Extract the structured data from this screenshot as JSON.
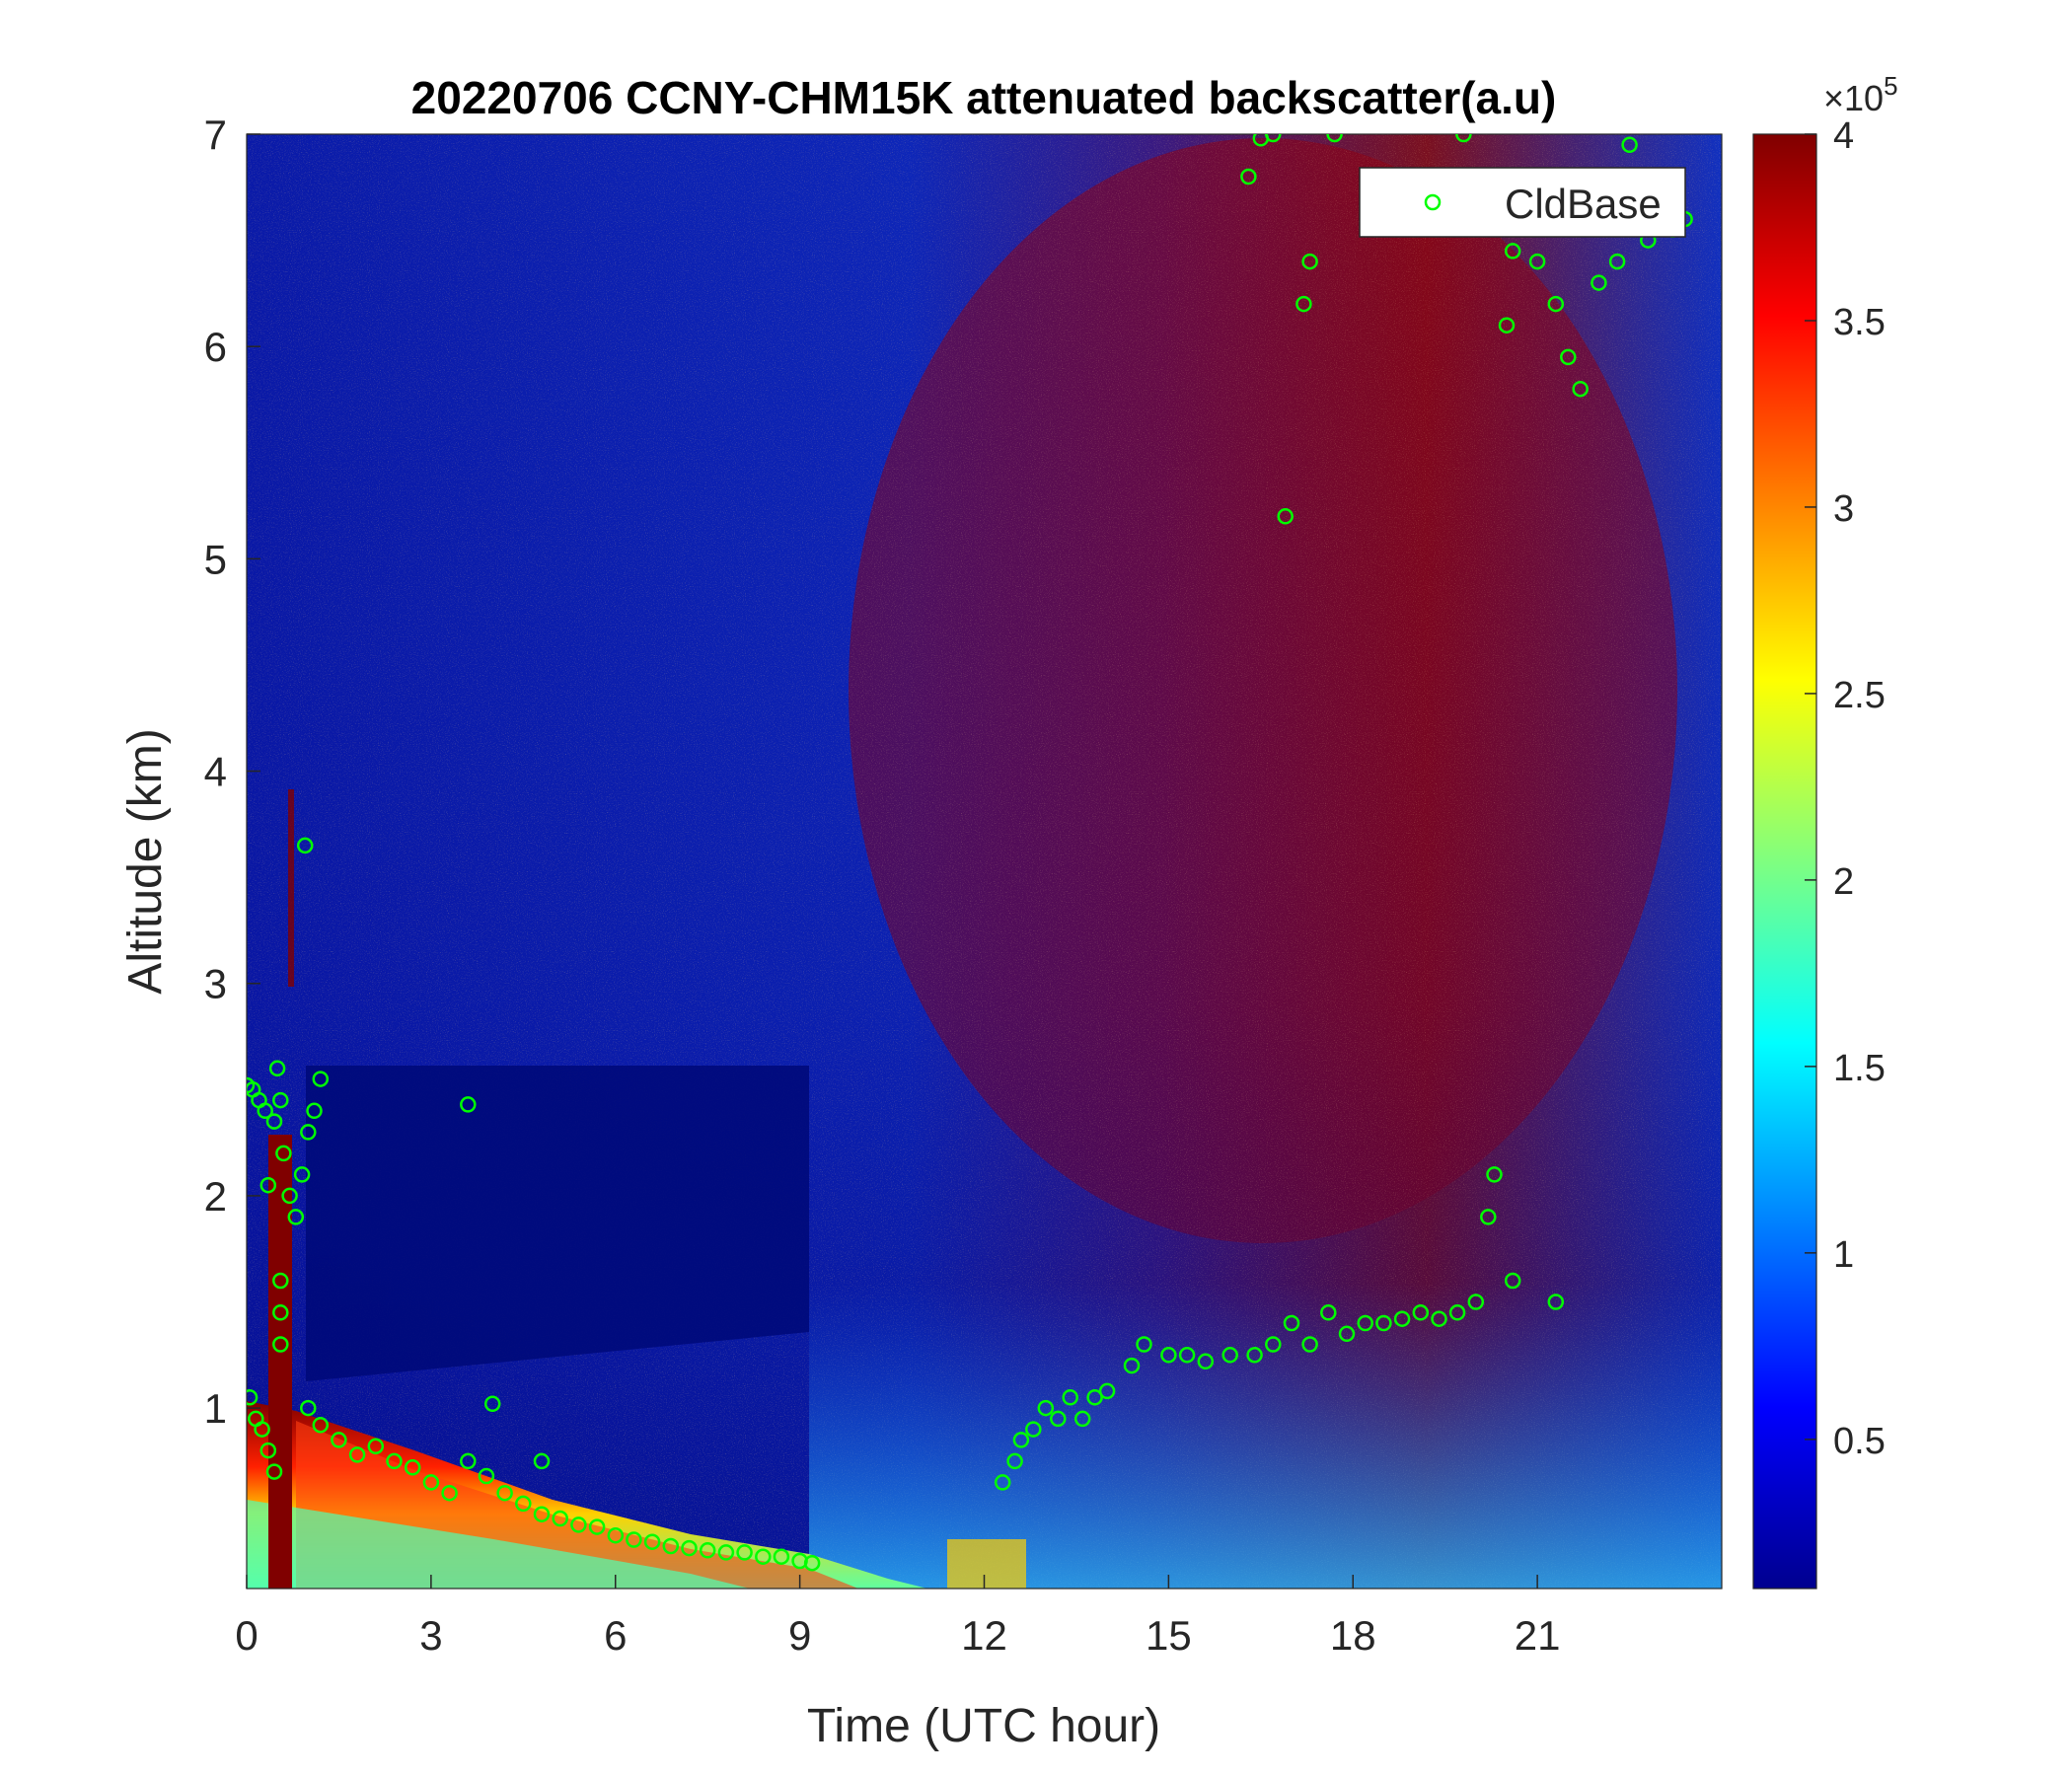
{
  "chart_data": {
    "type": "heatmap",
    "title": "20220706 CCNY-CHM15K attenuated backscatter(a.u)",
    "xlabel": "Time (UTC hour)",
    "ylabel": "Altitude (km)",
    "xlim": [
      0,
      24
    ],
    "ylim": [
      0.15,
      7
    ],
    "x_ticks": [
      "0",
      "3",
      "6",
      "9",
      "12",
      "15",
      "18",
      "21"
    ],
    "y_ticks": [
      "1",
      "2",
      "3",
      "4",
      "5",
      "6",
      "7"
    ],
    "colorbar": {
      "colormap": "jet",
      "range": [
        0.1,
        4
      ],
      "multiplier": "×10",
      "multiplier_exponent": "5",
      "ticks": [
        "0.5",
        "1",
        "1.5",
        "2",
        "2.5",
        "3",
        "3.5",
        "4"
      ]
    },
    "legend": {
      "placement": "top-right",
      "entries": [
        "CldBase"
      ]
    },
    "series": [
      {
        "name": "CldBase",
        "marker": "circle",
        "color": "#00ff00",
        "points": [
          [
            0.0,
            2.52
          ],
          [
            0.1,
            2.5
          ],
          [
            0.2,
            2.45
          ],
          [
            0.3,
            2.4
          ],
          [
            0.35,
            2.05
          ],
          [
            0.45,
            2.35
          ],
          [
            0.5,
            2.6
          ],
          [
            0.55,
            2.45
          ],
          [
            0.6,
            2.2
          ],
          [
            0.7,
            2.0
          ],
          [
            0.8,
            1.9
          ],
          [
            0.9,
            2.1
          ],
          [
            1.0,
            2.3
          ],
          [
            1.1,
            2.4
          ],
          [
            1.2,
            2.55
          ],
          [
            0.55,
            1.6
          ],
          [
            0.55,
            1.45
          ],
          [
            0.55,
            1.3
          ],
          [
            0.95,
            3.65
          ],
          [
            0.05,
            1.05
          ],
          [
            0.15,
            0.95
          ],
          [
            0.25,
            0.9
          ],
          [
            0.35,
            0.8
          ],
          [
            0.45,
            0.7
          ],
          [
            1.0,
            1.0
          ],
          [
            1.2,
            0.92
          ],
          [
            1.5,
            0.85
          ],
          [
            1.8,
            0.78
          ],
          [
            2.1,
            0.82
          ],
          [
            2.4,
            0.75
          ],
          [
            2.7,
            0.72
          ],
          [
            3.0,
            0.65
          ],
          [
            3.3,
            0.6
          ],
          [
            3.6,
            0.75
          ],
          [
            3.9,
            0.68
          ],
          [
            4.2,
            0.6
          ],
          [
            4.5,
            0.55
          ],
          [
            4.8,
            0.5
          ],
          [
            5.1,
            0.48
          ],
          [
            5.4,
            0.45
          ],
          [
            5.7,
            0.44
          ],
          [
            6.0,
            0.4
          ],
          [
            6.3,
            0.38
          ],
          [
            6.6,
            0.37
          ],
          [
            6.9,
            0.35
          ],
          [
            7.2,
            0.34
          ],
          [
            7.5,
            0.33
          ],
          [
            7.8,
            0.32
          ],
          [
            8.1,
            0.32
          ],
          [
            8.4,
            0.3
          ],
          [
            8.7,
            0.3
          ],
          [
            9.0,
            0.28
          ],
          [
            9.2,
            0.27
          ],
          [
            3.6,
            2.43
          ],
          [
            4.0,
            1.02
          ],
          [
            4.8,
            0.75
          ],
          [
            12.3,
            0.65
          ],
          [
            12.5,
            0.75
          ],
          [
            12.6,
            0.85
          ],
          [
            12.8,
            0.9
          ],
          [
            13.0,
            1.0
          ],
          [
            13.2,
            0.95
          ],
          [
            13.4,
            1.05
          ],
          [
            13.6,
            0.95
          ],
          [
            13.8,
            1.05
          ],
          [
            14.0,
            1.08
          ],
          [
            14.4,
            1.2
          ],
          [
            14.6,
            1.3
          ],
          [
            15.0,
            1.25
          ],
          [
            15.3,
            1.25
          ],
          [
            15.6,
            1.22
          ],
          [
            16.0,
            1.25
          ],
          [
            16.4,
            1.25
          ],
          [
            16.7,
            1.3
          ],
          [
            17.0,
            1.4
          ],
          [
            17.3,
            1.3
          ],
          [
            17.6,
            1.45
          ],
          [
            17.9,
            1.35
          ],
          [
            18.2,
            1.4
          ],
          [
            18.5,
            1.4
          ],
          [
            18.8,
            1.42
          ],
          [
            19.1,
            1.45
          ],
          [
            19.4,
            1.42
          ],
          [
            19.7,
            1.45
          ],
          [
            20.0,
            1.5
          ],
          [
            20.2,
            1.9
          ],
          [
            20.3,
            2.1
          ],
          [
            20.6,
            1.6
          ],
          [
            21.3,
            1.5
          ],
          [
            16.3,
            6.8
          ],
          [
            16.5,
            6.98
          ],
          [
            16.7,
            7.0
          ],
          [
            16.9,
            5.2
          ],
          [
            17.2,
            6.2
          ],
          [
            17.3,
            6.4
          ],
          [
            17.7,
            7.0
          ],
          [
            19.8,
            7.0
          ],
          [
            20.5,
            6.1
          ],
          [
            20.6,
            6.45
          ],
          [
            21.0,
            6.4
          ],
          [
            21.3,
            6.2
          ],
          [
            21.5,
            5.95
          ],
          [
            21.7,
            5.8
          ],
          [
            22.0,
            6.3
          ],
          [
            22.3,
            6.4
          ],
          [
            22.5,
            6.95
          ],
          [
            22.8,
            6.5
          ],
          [
            23.2,
            6.55
          ],
          [
            23.4,
            6.6
          ]
        ]
      }
    ]
  }
}
